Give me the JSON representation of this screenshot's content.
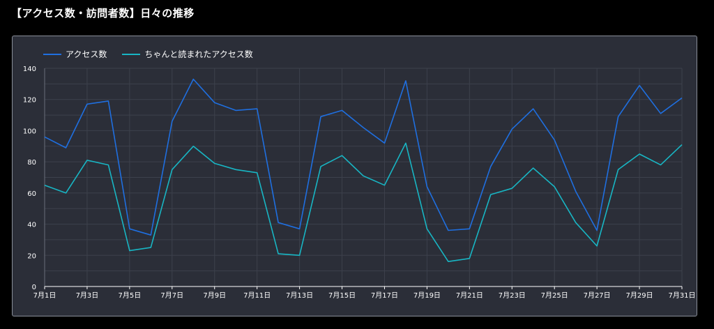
{
  "page": {
    "title": "【アクセス数・訪問者数】日々の推移"
  },
  "colors": {
    "background": "#000000",
    "card": "#2b2e38",
    "grid": "#3d414c",
    "axis_text": "#ffffff",
    "access": "#1f6fe0",
    "read": "#18b6c4"
  },
  "chart_data": {
    "type": "line",
    "xlabel": "",
    "ylabel": "",
    "ylim": [
      0,
      140
    ],
    "yticks": [
      0,
      20,
      40,
      60,
      80,
      100,
      120,
      140
    ],
    "grid": true,
    "legend_position": "top-left",
    "x": [
      "7月1日",
      "7月2日",
      "7月3日",
      "7月4日",
      "7月5日",
      "7月6日",
      "7月7日",
      "7月8日",
      "7月9日",
      "7月10日",
      "7月11日",
      "7月12日",
      "7月13日",
      "7月14日",
      "7月15日",
      "7月16日",
      "7月17日",
      "7月18日",
      "7月19日",
      "7月20日",
      "7月21日",
      "7月22日",
      "7月23日",
      "7月24日",
      "7月25日",
      "7月26日",
      "7月27日",
      "7月28日",
      "7月29日",
      "7月30日",
      "7月31日"
    ],
    "xtick_labels": [
      "7月1日",
      "7月3日",
      "7月5日",
      "7月7日",
      "7月9日",
      "7月11日",
      "7月13日",
      "7月15日",
      "7月17日",
      "7月19日",
      "7月21日",
      "7月23日",
      "7月25日",
      "7月27日",
      "7月29日",
      "7月31日"
    ],
    "series": [
      {
        "name": "アクセス数",
        "color": "#1f6fe0",
        "values": [
          96,
          89,
          117,
          119,
          37,
          33,
          106,
          133,
          118,
          113,
          114,
          41,
          37,
          109,
          113,
          102,
          92,
          132,
          64,
          36,
          37,
          77,
          101,
          114,
          94,
          61,
          36,
          109,
          129,
          111,
          121
        ]
      },
      {
        "name": "ちゃんと読まれたアクセス数",
        "color": "#18b6c4",
        "values": [
          65,
          60,
          81,
          78,
          23,
          25,
          75,
          90,
          79,
          75,
          73,
          21,
          20,
          77,
          84,
          71,
          65,
          92,
          37,
          16,
          18,
          59,
          63,
          76,
          64,
          41,
          26,
          75,
          85,
          78,
          91
        ]
      }
    ]
  }
}
